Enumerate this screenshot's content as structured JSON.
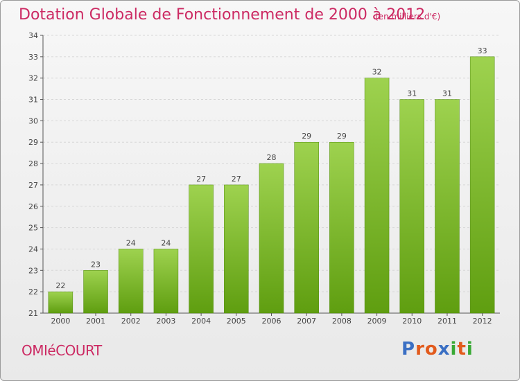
{
  "title": "Dotation Globale de Fonctionnement de 2000 à 2012",
  "unit_note": "(en milliers d'€)",
  "commune": "OMIéCOURT",
  "logo": {
    "text": "Proxiti",
    "letter_colors": [
      "#3a6fc4",
      "#e25b1d",
      "#e25b1d",
      "#3a6fc4",
      "#39a935",
      "#e25b1d",
      "#39a935"
    ]
  },
  "colors": {
    "bar_top": "#9ed24f",
    "bar_bottom": "#5f9e10",
    "title": "#cc2a63"
  },
  "chart_data": {
    "type": "bar",
    "title": "Dotation Globale de Fonctionnement de 2000 à 2012",
    "subtitle": "(en milliers d'€)",
    "xlabel": "",
    "ylabel": "",
    "categories": [
      "2000",
      "2001",
      "2002",
      "2003",
      "2004",
      "2005",
      "2006",
      "2007",
      "2008",
      "2009",
      "2010",
      "2011",
      "2012"
    ],
    "values": [
      22,
      23,
      24,
      24,
      27,
      27,
      28,
      29,
      29,
      32,
      31,
      31,
      33
    ],
    "ylim": [
      21,
      34
    ],
    "yticks": [
      21,
      22,
      23,
      24,
      25,
      26,
      27,
      28,
      29,
      30,
      31,
      32,
      33,
      34
    ],
    "grid": true,
    "legend": "none"
  }
}
